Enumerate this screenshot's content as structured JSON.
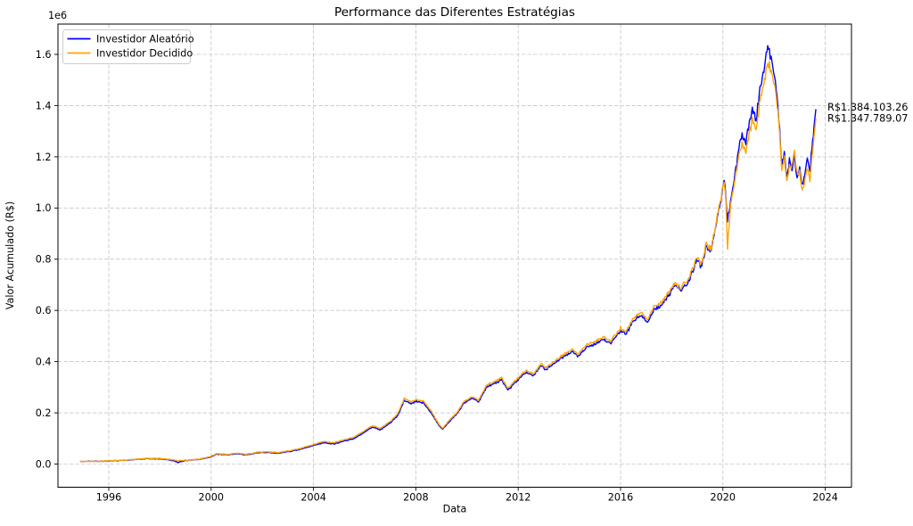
{
  "title": "Performance das Diferentes Estratégias",
  "xlabel": "Data",
  "ylabel": "Valor Acumulado (R$)",
  "offset_label": "1e6",
  "legend": [
    {
      "label": "Investidor Aleatório",
      "color": "#0000ff"
    },
    {
      "label": "Investidor Decidido",
      "color": "#ffa500"
    }
  ],
  "annotations": [
    {
      "text": "R$1.384.103.26",
      "color": "#0000ff"
    },
    {
      "text": "R$1.347.789.07",
      "color": "#ffa500"
    }
  ],
  "chart_data": {
    "type": "line",
    "title": "Performance das Diferentes Estratégias",
    "xlabel": "Data",
    "ylabel": "Valor Acumulado (R$)",
    "y_scale_factor": 1000000,
    "y_offset_label": "1e6",
    "xlim": [
      1994.0,
      2025.0
    ],
    "ylim": [
      -0.09,
      1.72
    ],
    "grid": true,
    "legend_position": "upper-left",
    "x_ticks": [
      {
        "value": 1996,
        "label": "1996"
      },
      {
        "value": 2000,
        "label": "2000"
      },
      {
        "value": 2004,
        "label": "2004"
      },
      {
        "value": 2008,
        "label": "2008"
      },
      {
        "value": 2012,
        "label": "2012"
      },
      {
        "value": 2016,
        "label": "2016"
      },
      {
        "value": 2020,
        "label": "2020"
      },
      {
        "value": 2024,
        "label": "2024"
      }
    ],
    "y_ticks": [
      {
        "value": 0.0,
        "label": "0.0"
      },
      {
        "value": 0.2,
        "label": "0.2"
      },
      {
        "value": 0.4,
        "label": "0.4"
      },
      {
        "value": 0.6,
        "label": "0.6"
      },
      {
        "value": 0.8,
        "label": "0.8"
      },
      {
        "value": 1.0,
        "label": "1.0"
      },
      {
        "value": 1.2,
        "label": "1.2"
      },
      {
        "value": 1.4,
        "label": "1.4"
      },
      {
        "value": 1.6,
        "label": "1.6"
      }
    ],
    "series_names": [
      "Investidor Aleatório",
      "Investidor Decidido"
    ],
    "series_colors": [
      "#0000ff",
      "#ffa500"
    ],
    "final_values": [
      1384103.26,
      1347789.07
    ],
    "columns": [
      "year",
      "investidor_aleatorio_1e6",
      "investidor_decidido_1e6"
    ],
    "points": [
      [
        1994.9,
        0.01,
        0.01
      ],
      [
        1995.5,
        0.011,
        0.011
      ],
      [
        1996.0,
        0.012,
        0.013
      ],
      [
        1996.5,
        0.014,
        0.015
      ],
      [
        1997.0,
        0.017,
        0.018
      ],
      [
        1997.5,
        0.021,
        0.022
      ],
      [
        1998.0,
        0.02,
        0.022
      ],
      [
        1998.4,
        0.016,
        0.018
      ],
      [
        1998.7,
        0.007,
        0.013
      ],
      [
        1999.0,
        0.014,
        0.015
      ],
      [
        1999.5,
        0.018,
        0.019
      ],
      [
        2000.0,
        0.028,
        0.03
      ],
      [
        2000.2,
        0.038,
        0.04
      ],
      [
        2000.7,
        0.036,
        0.038
      ],
      [
        2001.0,
        0.04,
        0.042
      ],
      [
        2001.4,
        0.036,
        0.038
      ],
      [
        2001.8,
        0.044,
        0.046
      ],
      [
        2002.2,
        0.046,
        0.048
      ],
      [
        2002.6,
        0.042,
        0.045
      ],
      [
        2003.0,
        0.048,
        0.051
      ],
      [
        2003.5,
        0.058,
        0.061
      ],
      [
        2004.0,
        0.072,
        0.076
      ],
      [
        2004.4,
        0.083,
        0.088
      ],
      [
        2004.8,
        0.078,
        0.083
      ],
      [
        2005.2,
        0.09,
        0.095
      ],
      [
        2005.6,
        0.1,
        0.106
      ],
      [
        2006.0,
        0.125,
        0.131
      ],
      [
        2006.3,
        0.145,
        0.15
      ],
      [
        2006.6,
        0.133,
        0.139
      ],
      [
        2007.0,
        0.16,
        0.166
      ],
      [
        2007.3,
        0.19,
        0.197
      ],
      [
        2007.55,
        0.248,
        0.256
      ],
      [
        2007.8,
        0.235,
        0.243
      ],
      [
        2008.0,
        0.245,
        0.252
      ],
      [
        2008.3,
        0.238,
        0.246
      ],
      [
        2008.6,
        0.2,
        0.207
      ],
      [
        2008.9,
        0.15,
        0.155
      ],
      [
        2009.05,
        0.136,
        0.14
      ],
      [
        2009.3,
        0.165,
        0.17
      ],
      [
        2009.6,
        0.195,
        0.2
      ],
      [
        2009.9,
        0.24,
        0.246
      ],
      [
        2010.2,
        0.255,
        0.261
      ],
      [
        2010.45,
        0.243,
        0.249
      ],
      [
        2010.8,
        0.305,
        0.312
      ],
      [
        2011.1,
        0.315,
        0.322
      ],
      [
        2011.35,
        0.33,
        0.337
      ],
      [
        2011.6,
        0.288,
        0.295
      ],
      [
        2011.8,
        0.31,
        0.317
      ],
      [
        2012.0,
        0.33,
        0.337
      ],
      [
        2012.3,
        0.36,
        0.367
      ],
      [
        2012.6,
        0.345,
        0.352
      ],
      [
        2012.9,
        0.385,
        0.392
      ],
      [
        2013.1,
        0.368,
        0.375
      ],
      [
        2013.5,
        0.4,
        0.408
      ],
      [
        2013.8,
        0.42,
        0.428
      ],
      [
        2014.1,
        0.44,
        0.449
      ],
      [
        2014.35,
        0.42,
        0.429
      ],
      [
        2014.7,
        0.458,
        0.467
      ],
      [
        2015.0,
        0.47,
        0.479
      ],
      [
        2015.35,
        0.488,
        0.497
      ],
      [
        2015.6,
        0.47,
        0.479
      ],
      [
        2016.0,
        0.523,
        0.532
      ],
      [
        2016.2,
        0.505,
        0.514
      ],
      [
        2016.5,
        0.56,
        0.57
      ],
      [
        2016.8,
        0.58,
        0.59
      ],
      [
        2017.05,
        0.556,
        0.566
      ],
      [
        2017.3,
        0.6,
        0.61
      ],
      [
        2017.6,
        0.622,
        0.633
      ],
      [
        2017.9,
        0.66,
        0.67
      ],
      [
        2018.1,
        0.7,
        0.71
      ],
      [
        2018.35,
        0.68,
        0.69
      ],
      [
        2018.6,
        0.7,
        0.712
      ],
      [
        2018.8,
        0.75,
        0.76
      ],
      [
        2019.0,
        0.8,
        0.81
      ],
      [
        2019.15,
        0.77,
        0.78
      ],
      [
        2019.35,
        0.85,
        0.858
      ],
      [
        2019.55,
        0.83,
        0.838
      ],
      [
        2019.75,
        0.95,
        0.956
      ],
      [
        2019.9,
        1.02,
        1.024
      ],
      [
        2020.05,
        1.11,
        1.108
      ],
      [
        2020.12,
        1.04,
        1.03
      ],
      [
        2020.18,
        0.952,
        0.845
      ],
      [
        2020.3,
        1.03,
        1.01
      ],
      [
        2020.45,
        1.12,
        1.1
      ],
      [
        2020.6,
        1.22,
        1.19
      ],
      [
        2020.75,
        1.29,
        1.25
      ],
      [
        2020.9,
        1.25,
        1.215
      ],
      [
        2021.0,
        1.31,
        1.27
      ],
      [
        2021.15,
        1.39,
        1.345
      ],
      [
        2021.3,
        1.34,
        1.3
      ],
      [
        2021.45,
        1.47,
        1.42
      ],
      [
        2021.6,
        1.545,
        1.49
      ],
      [
        2021.75,
        1.638,
        1.578
      ],
      [
        2021.85,
        1.6,
        1.55
      ],
      [
        2021.95,
        1.555,
        1.51
      ],
      [
        2022.05,
        1.5,
        1.47
      ],
      [
        2022.15,
        1.38,
        1.36
      ],
      [
        2022.22,
        1.3,
        1.285
      ],
      [
        2022.3,
        1.155,
        1.14
      ],
      [
        2022.4,
        1.22,
        1.2
      ],
      [
        2022.5,
        1.12,
        1.11
      ],
      [
        2022.6,
        1.19,
        1.16
      ],
      [
        2022.7,
        1.14,
        1.16
      ],
      [
        2022.8,
        1.2,
        1.22
      ],
      [
        2022.9,
        1.11,
        1.13
      ],
      [
        2023.0,
        1.165,
        1.14
      ],
      [
        2023.1,
        1.09,
        1.07
      ],
      [
        2023.2,
        1.14,
        1.11
      ],
      [
        2023.3,
        1.19,
        1.15
      ],
      [
        2023.4,
        1.13,
        1.1
      ],
      [
        2023.48,
        1.24,
        1.2
      ],
      [
        2023.56,
        1.32,
        1.28
      ],
      [
        2023.63,
        1.384103,
        1.347789
      ]
    ]
  }
}
